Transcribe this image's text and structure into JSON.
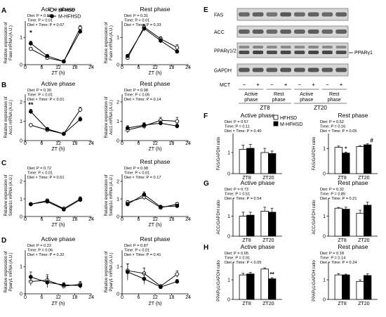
{
  "panels": {
    "lines": [
      {
        "letter": "A",
        "ylabel": [
          "Relative expression of",
          "Fasn mRNA (A.U.)"
        ],
        "charts": [
          {
            "title": "Active phase",
            "stats": [
              "Diet: P = 0.88",
              "Time: P < 0.01",
              "Diet × Time: P = 0.07"
            ],
            "legend": [
              "HFHSD",
              "M-HFHSD"
            ],
            "sig": [
              {
                "x": 2,
                "y": 1.1,
                "text": "*"
              }
            ]
          },
          {
            "title": "Rest phase",
            "stats": [
              "Diet: P = 0.31",
              "Time: P < 0.01",
              "Diet × Time: P = 0.33"
            ]
          }
        ]
      },
      {
        "letter": "B",
        "ylabel": [
          "Relative expression of",
          "Acc1 mRNA (A.U.)"
        ],
        "charts": [
          {
            "title": "Active phase",
            "stats": [
              "Diet: P = 0.30",
              "Time: P < 0.01",
              "Diet × Time: P < 0.01"
            ],
            "sig": [
              {
                "x": 2,
                "y": 1.75,
                "text": "**"
              }
            ]
          },
          {
            "title": "Rest phase",
            "stats": [
              "Diet: P = 0.98",
              "Time: P < 0.05",
              "Diet × Time: P = 0.14"
            ]
          }
        ]
      },
      {
        "letter": "C",
        "ylabel": [
          "Relative expression of",
          "Srebp1c mRNA (A.U.)"
        ],
        "charts": [
          {
            "title": "",
            "stats": [
              "Diet: P = 0.72",
              "Time: P < 0.01",
              "Diet × Time: P = 0.61"
            ]
          },
          {
            "title": "Rest phase",
            "stats": [
              "Diet: P = 0.98",
              "Time: P < 0.01",
              "Diet × Time: P = 0.17"
            ]
          }
        ]
      },
      {
        "letter": "D",
        "ylabel": [
          "Relative expression of",
          "Pparγ1 mRNA (A.U.)"
        ],
        "charts": [
          {
            "title": "Active phase",
            "stats": [
              "Diet: P = 0.22",
              "Time: P = 0.06",
              "Diet × Time: P = 0.32"
            ]
          },
          {
            "title": "Rest phase",
            "stats": [
              "Diet: P = 0.87",
              "Time: P < 0.01",
              "Diet × Time: P = 0.41"
            ]
          }
        ]
      }
    ],
    "blot": {
      "letter": "E",
      "rows": [
        "FAS",
        "ACC",
        "PPARγ1/2",
        "GAPDH"
      ],
      "side_label": "PPARγ1",
      "mct_label": "MCT",
      "mct_signs": [
        "−",
        "+",
        "−",
        "+",
        "−",
        "+",
        "−",
        "+"
      ],
      "phases": [
        "Active phase",
        "Rest phase",
        "Active phase",
        "Rest phase"
      ],
      "zt": [
        "ZT8",
        "ZT20"
      ]
    },
    "bars": [
      {
        "letter": "F",
        "charts": [
          {
            "title": "Active phase",
            "ylabel": "FAS/GAPDH ratio",
            "stats": [
              "Diet: P = 0.57",
              "Time: P = 0.11",
              "Diet × Time: P = 0.40"
            ],
            "legend": [
              "HFHSD",
              "M-HFHSD"
            ]
          },
          {
            "title": "Rest phase",
            "ylabel": "FAS/GAPDH ratio",
            "stats": [
              "Diet: P = 0.52",
              "Time: P = 0.16",
              "Diet × Time: P = 0.05"
            ],
            "sig": [
              {
                "bar": 1,
                "text": "*"
              },
              {
                "bar": 3,
                "text": "#"
              }
            ]
          }
        ]
      },
      {
        "letter": "G",
        "charts": [
          {
            "title": "Active phase",
            "ylabel": "ACC/GAPDH ratio",
            "stats": [
              "Diet: P = 0.73",
              "Time: P = 0.51",
              "Diet × Time: P = 0.54"
            ]
          },
          {
            "title": "Rest phase",
            "ylabel": "ACC/GAPDH ratio",
            "stats": [
              "Diet: P = 0.32",
              "Time: P = 0.85",
              "Diet × Time: P = 0.21"
            ]
          }
        ]
      },
      {
        "letter": "H",
        "charts": [
          {
            "title": "Active phase",
            "ylabel": "PPARγ1/GAPDH ratio",
            "stats": [
              "Diet: P = 0.05",
              "Time: P = 0.91",
              "Diet × Time: P < 0.05"
            ],
            "sig": [
              {
                "bar": 3,
                "text": "**"
              }
            ]
          },
          {
            "title": "Rest phase",
            "ylabel": "PPARγ1/GAPDH ratio",
            "stats": [
              "Diet: P = 0.18",
              "Time: P = 0.14",
              "Diet × Time: P = 0.24"
            ]
          }
        ]
      }
    ]
  },
  "chart_data": [
    {
      "panel": "A",
      "title": "Active phase",
      "type": "line",
      "xlabel": "ZT (h)",
      "ylabel": "Relative expression of Fasn mRNA (A.U.)",
      "x": [
        2,
        8,
        14,
        20
      ],
      "xticks": [
        0,
        6,
        12,
        18,
        24
      ],
      "yticks": [
        0,
        1
      ],
      "ylim": [
        0,
        1.6
      ],
      "series": [
        {
          "name": "HFHSD",
          "values": [
            0.58,
            0.25,
            0.12,
            1.35
          ],
          "errors": [
            0.05,
            0.05,
            0.03,
            0.08
          ]
        },
        {
          "name": "M-HFHSD",
          "values": [
            0.78,
            0.32,
            0.12,
            1.22
          ],
          "errors": [
            0.08,
            0.05,
            0.03,
            0.08
          ]
        }
      ]
    },
    {
      "panel": "A",
      "title": "Rest phase",
      "type": "line",
      "xlabel": "ZT (h)",
      "ylabel": "Relative expression of Fasn mRNA (A.U.)",
      "x": [
        2,
        8,
        14,
        20
      ],
      "xticks": [
        0,
        6,
        12,
        18,
        24
      ],
      "yticks": [
        0,
        1
      ],
      "ylim": [
        0,
        1.6
      ],
      "series": [
        {
          "name": "HFHSD",
          "values": [
            0.25,
            1.38,
            0.95,
            0.63
          ],
          "errors": [
            0.06,
            0.1,
            0.08,
            0.1
          ]
        },
        {
          "name": "M-HFHSD",
          "values": [
            0.32,
            1.33,
            0.88,
            0.48
          ],
          "errors": [
            0.06,
            0.1,
            0.08,
            0.06
          ]
        }
      ]
    },
    {
      "panel": "B",
      "title": "Active phase",
      "type": "line",
      "xlabel": "ZT (h)",
      "ylabel": "Relative expression of Acc1 mRNA (A.U.)",
      "x": [
        2,
        8,
        14,
        20
      ],
      "xticks": [
        0,
        6,
        12,
        18,
        24
      ],
      "yticks": [
        0,
        1,
        2
      ],
      "ylim": [
        0,
        2.4
      ],
      "series": [
        {
          "name": "HFHSD",
          "values": [
            0.8,
            0.55,
            0.35,
            1.6
          ],
          "errors": [
            0.08,
            0.05,
            0.04,
            0.12
          ]
        },
        {
          "name": "M-HFHSD",
          "values": [
            1.5,
            0.6,
            0.35,
            1.1
          ],
          "errors": [
            0.12,
            0.06,
            0.04,
            0.12
          ]
        }
      ]
    },
    {
      "panel": "B",
      "title": "Rest phase",
      "type": "line",
      "xlabel": "ZT (h)",
      "ylabel": "Relative expression of Acc1 mRNA (A.U.)",
      "x": [
        2,
        8,
        14,
        20
      ],
      "xticks": [
        0,
        6,
        12,
        18,
        24
      ],
      "yticks": [
        0,
        1,
        2
      ],
      "ylim": [
        0,
        2.4
      ],
      "series": [
        {
          "name": "HFHSD",
          "values": [
            0.55,
            0.75,
            1.05,
            1.0
          ],
          "errors": [
            0.15,
            0.15,
            0.15,
            0.2
          ]
        },
        {
          "name": "M-HFHSD",
          "values": [
            0.65,
            0.8,
            0.9,
            0.75
          ],
          "errors": [
            0.12,
            0.12,
            0.12,
            0.12
          ]
        }
      ]
    },
    {
      "panel": "C",
      "title": "",
      "type": "line",
      "xlabel": "ZT (h)",
      "ylabel": "Relative expression of Srebp1c mRNA (A.U.)",
      "x": [
        2,
        8,
        14,
        20
      ],
      "xticks": [
        0,
        6,
        12,
        18,
        24
      ],
      "yticks": [
        0,
        1,
        2
      ],
      "ylim": [
        0,
        2.4
      ],
      "series": [
        {
          "name": "HFHSD",
          "values": [
            0.7,
            0.9,
            0.45,
            1.0
          ],
          "errors": [
            0.08,
            0.1,
            0.05,
            0.12
          ]
        },
        {
          "name": "M-HFHSD",
          "values": [
            0.7,
            0.85,
            0.4,
            0.95
          ],
          "errors": [
            0.08,
            0.1,
            0.05,
            0.12
          ]
        }
      ]
    },
    {
      "panel": "C",
      "title": "Rest phase",
      "type": "line",
      "xlabel": "ZT (h)",
      "ylabel": "Relative expression of Srebp1c mRNA (A.U.)",
      "x": [
        2,
        8,
        14,
        20
      ],
      "xticks": [
        0,
        6,
        12,
        18,
        24
      ],
      "yticks": [
        0,
        1,
        2
      ],
      "ylim": [
        0,
        2.4
      ],
      "series": [
        {
          "name": "HFHSD",
          "values": [
            0.8,
            1.1,
            0.5,
            0.7
          ],
          "errors": [
            0.1,
            0.15,
            0.08,
            0.1
          ]
        },
        {
          "name": "M-HFHSD",
          "values": [
            0.7,
            1.25,
            0.55,
            0.6
          ],
          "errors": [
            0.1,
            0.15,
            0.08,
            0.1
          ]
        }
      ]
    },
    {
      "panel": "D",
      "title": "Active phase",
      "type": "line",
      "xlabel": "ZT (h)",
      "ylabel": "Relative expression of Pparγ1 mRNA (A.U.)",
      "x": [
        2,
        8,
        14,
        20
      ],
      "xticks": [
        0,
        6,
        12,
        18,
        24
      ],
      "yticks": [
        0,
        1
      ],
      "ylim": [
        0,
        1.6
      ],
      "series": [
        {
          "name": "HFHSD",
          "values": [
            0.45,
            0.5,
            0.28,
            0.35
          ],
          "errors": [
            0.15,
            0.2,
            0.08,
            0.1
          ]
        },
        {
          "name": "M-HFHSD",
          "values": [
            0.62,
            0.42,
            0.33,
            0.3
          ],
          "errors": [
            0.18,
            0.2,
            0.08,
            0.1
          ]
        }
      ]
    },
    {
      "panel": "D",
      "title": "Rest phase",
      "type": "line",
      "xlabel": "ZT (h)",
      "ylabel": "Relative expression of Pparγ1 mRNA (A.U.)",
      "x": [
        2,
        8,
        14,
        20
      ],
      "xticks": [
        0,
        6,
        12,
        18,
        24
      ],
      "yticks": [
        0,
        1
      ],
      "ylim": [
        0,
        1.6
      ],
      "series": [
        {
          "name": "HFHSD",
          "values": [
            0.85,
            0.75,
            0.28,
            0.72
          ],
          "errors": [
            0.25,
            0.2,
            0.05,
            0.12
          ]
        },
        {
          "name": "M-HFHSD",
          "values": [
            0.8,
            0.55,
            0.25,
            0.45
          ],
          "errors": [
            0.3,
            0.2,
            0.05,
            0.08
          ]
        }
      ]
    },
    {
      "panel": "F",
      "title": "Active phase",
      "type": "bar",
      "categories": [
        "ZT8",
        "ZT20"
      ],
      "ylabel": "FAS/GAPDH ratio",
      "yticks": [
        0,
        1
      ],
      "ylim": [
        0,
        1.9
      ],
      "series": [
        {
          "name": "HFHSD",
          "values": [
            1.15,
            1.0
          ],
          "errors": [
            0.2,
            0.2
          ]
        },
        {
          "name": "M-HFHSD",
          "values": [
            1.2,
            0.95
          ],
          "errors": [
            0.18,
            0.12
          ]
        }
      ]
    },
    {
      "panel": "F",
      "title": "Rest phase",
      "type": "bar",
      "categories": [
        "ZT8",
        "ZT20"
      ],
      "ylabel": "FAS/GAPDH ratio",
      "yticks": [
        0,
        1
      ],
      "ylim": [
        0,
        1.6
      ],
      "series": [
        {
          "name": "HFHSD",
          "values": [
            1.05,
            1.08
          ],
          "errors": [
            0.05,
            0.04
          ]
        },
        {
          "name": "M-HFHSD",
          "values": [
            0.82,
            1.15
          ],
          "errors": [
            0.04,
            0.04
          ]
        }
      ]
    },
    {
      "panel": "G",
      "title": "Active phase",
      "type": "bar",
      "categories": [
        "ZT8",
        "ZT20"
      ],
      "ylabel": "ACC/GAPDH ratio",
      "yticks": [
        0,
        1
      ],
      "ylim": [
        0,
        1.9
      ],
      "series": [
        {
          "name": "HFHSD",
          "values": [
            1.0,
            1.25
          ],
          "errors": [
            0.2,
            0.2
          ]
        },
        {
          "name": "M-HFHSD",
          "values": [
            1.05,
            1.2
          ],
          "errors": [
            0.15,
            0.2
          ]
        }
      ]
    },
    {
      "panel": "G",
      "title": "Rest phase",
      "type": "bar",
      "categories": [
        "ZT8",
        "ZT20"
      ],
      "ylabel": "ACC/GAPDH ratio",
      "yticks": [
        0,
        1
      ],
      "ylim": [
        0,
        1.9
      ],
      "series": [
        {
          "name": "HFHSD",
          "values": [
            1.4,
            1.15
          ],
          "errors": [
            0.04,
            0.15
          ]
        },
        {
          "name": "M-HFHSD",
          "values": [
            1.35,
            1.55
          ],
          "errors": [
            0.1,
            0.15
          ]
        }
      ]
    },
    {
      "panel": "H",
      "title": "Active phase",
      "type": "bar",
      "categories": [
        "ZT8",
        "ZT20"
      ],
      "ylabel": "PPARγ1/GAPDH ratio",
      "yticks": [
        0,
        1
      ],
      "ylim": [
        0,
        1.9
      ],
      "series": [
        {
          "name": "HFHSD",
          "values": [
            1.25,
            1.55
          ],
          "errors": [
            0.08,
            0.06
          ]
        },
        {
          "name": "M-HFHSD",
          "values": [
            1.3,
            1.05
          ],
          "errors": [
            0.08,
            0.06
          ]
        }
      ]
    },
    {
      "panel": "H",
      "title": "Rest phase",
      "type": "bar",
      "categories": [
        "ZT8",
        "ZT20"
      ],
      "ylabel": "PPARγ1/GAPDH ratio",
      "yticks": [
        0,
        1
      ],
      "ylim": [
        0,
        1.9
      ],
      "series": [
        {
          "name": "HFHSD",
          "values": [
            1.25,
            0.92
          ],
          "errors": [
            0.06,
            0.08
          ]
        },
        {
          "name": "M-HFHSD",
          "values": [
            1.25,
            1.22
          ],
          "errors": [
            0.04,
            0.08
          ]
        }
      ]
    }
  ]
}
